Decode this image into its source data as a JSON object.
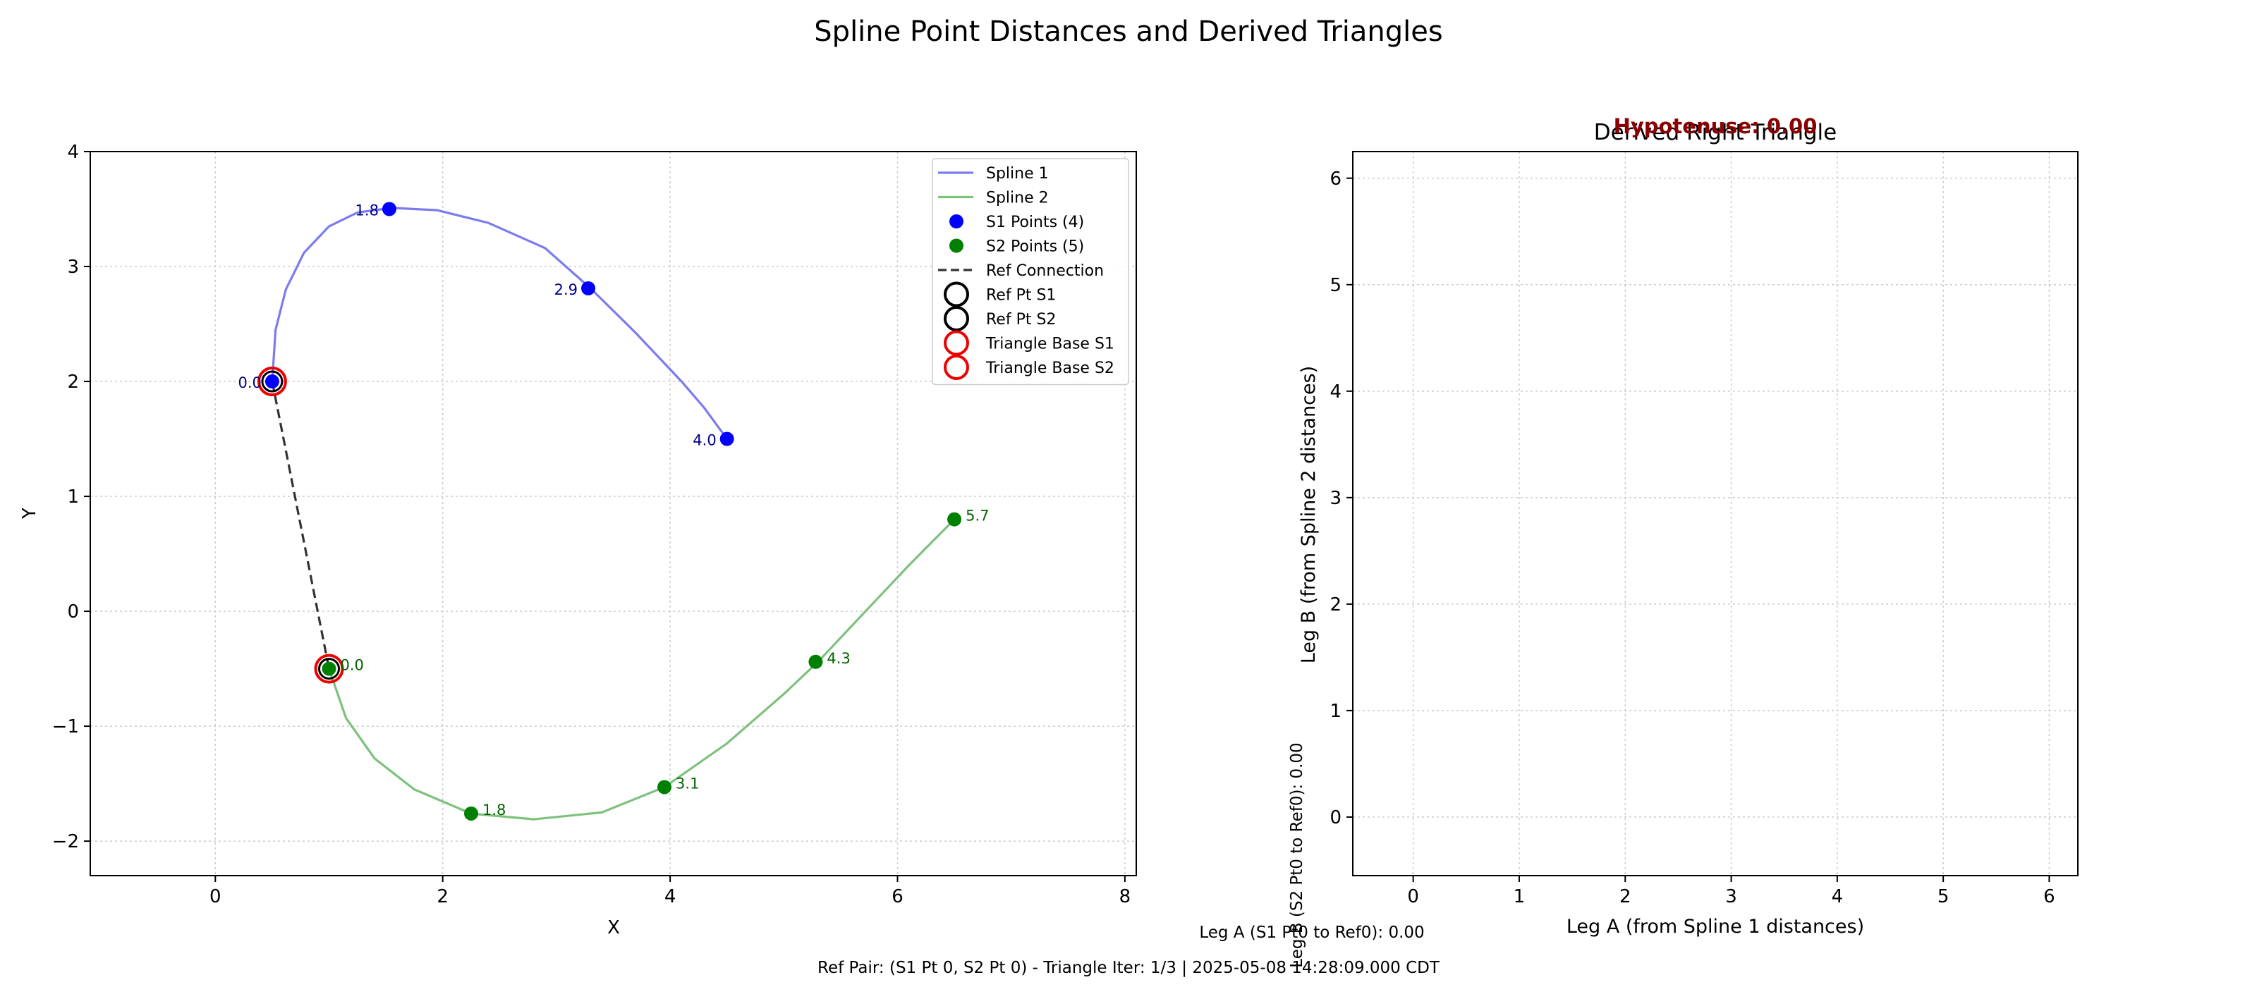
{
  "figure": {
    "title": "Spline Point Distances and Derived Triangles",
    "footer": "Ref Pair: (S1 Pt 0, S2 Pt 0) - Triangle Iter: 1/3 | 2025-05-08 14:28:09.000 CDT"
  },
  "chart_data": [
    {
      "type": "line",
      "xlabel": "X",
      "ylabel": "Y",
      "xlim": [
        -1.1,
        8.1
      ],
      "ylim": [
        -2.3,
        4.0
      ],
      "xticks": [
        0,
        2,
        4,
        6,
        8
      ],
      "yticks": [
        -2,
        -1,
        0,
        1,
        2,
        3,
        4
      ],
      "xtick_labels": [
        "0",
        "2",
        "4",
        "6",
        "8"
      ],
      "ytick_labels": [
        "−2",
        "−1",
        "0",
        "1",
        "2",
        "3",
        "4"
      ],
      "grid": true,
      "legend_position": "top-right",
      "legend": [
        {
          "label": "Spline 1",
          "kind": "line",
          "color": "#7b7bef"
        },
        {
          "label": "Spline 2",
          "kind": "line",
          "color": "#7dc17d"
        },
        {
          "label": "S1 Points (4)",
          "kind": "dot",
          "color": "#0000ff"
        },
        {
          "label": "S2 Points (5)",
          "kind": "dot",
          "color": "#008000"
        },
        {
          "label": "Ref Connection",
          "kind": "dashed",
          "color": "#333333"
        },
        {
          "label": "Ref Pt S1",
          "kind": "ring",
          "color": "#000000"
        },
        {
          "label": "Ref Pt S2",
          "kind": "ring",
          "color": "#000000"
        },
        {
          "label": "Triangle Base S1",
          "kind": "ring",
          "color": "#ee0000"
        },
        {
          "label": "Triangle Base S2",
          "kind": "ring",
          "color": "#ee0000"
        }
      ],
      "series": [
        {
          "name": "Spline 1",
          "color": "#7b7bef",
          "curve": [
            [
              0.5,
              2.0
            ],
            [
              0.53,
              2.45
            ],
            [
              0.62,
              2.8
            ],
            [
              0.78,
              3.12
            ],
            [
              1.0,
              3.35
            ],
            [
              1.25,
              3.47
            ],
            [
              1.55,
              3.51
            ],
            [
              1.95,
              3.49
            ],
            [
              2.4,
              3.38
            ],
            [
              2.9,
              3.16
            ],
            [
              3.3,
              2.81
            ],
            [
              3.7,
              2.42
            ],
            [
              4.1,
              2.0
            ],
            [
              4.3,
              1.77
            ],
            [
              4.5,
              1.5
            ]
          ],
          "points": [
            {
              "x": 0.5,
              "y": 2.0,
              "label": "0.0"
            },
            {
              "x": 1.53,
              "y": 3.5,
              "label": "1.8"
            },
            {
              "x": 3.28,
              "y": 2.81,
              "label": "2.9"
            },
            {
              "x": 4.5,
              "y": 1.5,
              "label": "4.0"
            }
          ],
          "point_color": "#0000ff",
          "label_color": "#00008b"
        },
        {
          "name": "Spline 2",
          "color": "#7dc17d",
          "curve": [
            [
              1.0,
              -0.5
            ],
            [
              1.15,
              -0.93
            ],
            [
              1.4,
              -1.28
            ],
            [
              1.75,
              -1.55
            ],
            [
              2.25,
              -1.76
            ],
            [
              2.8,
              -1.81
            ],
            [
              3.4,
              -1.75
            ],
            [
              3.95,
              -1.53
            ],
            [
              4.5,
              -1.15
            ],
            [
              5.0,
              -0.72
            ],
            [
              5.3,
              -0.44
            ],
            [
              5.7,
              -0.02
            ],
            [
              6.1,
              0.4
            ],
            [
              6.5,
              0.8
            ]
          ],
          "points": [
            {
              "x": 1.0,
              "y": -0.5,
              "label": "0.0"
            },
            {
              "x": 2.25,
              "y": -1.76,
              "label": "1.8"
            },
            {
              "x": 3.95,
              "y": -1.53,
              "label": "3.1"
            },
            {
              "x": 5.28,
              "y": -0.44,
              "label": "4.3"
            },
            {
              "x": 6.5,
              "y": 0.8,
              "label": "5.7"
            }
          ],
          "point_color": "#008000",
          "label_color": "#006400"
        }
      ],
      "ref_connection": [
        [
          0.5,
          2.0
        ],
        [
          1.0,
          -0.5
        ]
      ],
      "highlighted_points": [
        [
          0.5,
          2.0
        ],
        [
          1.0,
          -0.5
        ]
      ]
    },
    {
      "type": "line",
      "title": "Derived Right Triangle",
      "annotation": "Hypotenuse: 0.00",
      "xlabel": "Leg A (from Spline 1 distances)",
      "ylabel": "Leg B (from Spline 2 distances)",
      "xlim": [
        -0.57,
        6.27
      ],
      "ylim": [
        -0.55,
        6.25
      ],
      "xticks": [
        0,
        1,
        2,
        3,
        4,
        5,
        6
      ],
      "yticks": [
        0,
        1,
        2,
        3,
        4,
        5,
        6
      ],
      "xtick_labels": [
        "0",
        "1",
        "2",
        "3",
        "4",
        "5",
        "6"
      ],
      "ytick_labels": [
        "0",
        "1",
        "2",
        "3",
        "4",
        "5",
        "6"
      ],
      "grid": true,
      "leg_a_label": "Leg A (S1 Pt0 to Ref0): 0.00",
      "leg_b_label": "Leg B (S2 Pt0 to Ref0): 0.00"
    }
  ]
}
